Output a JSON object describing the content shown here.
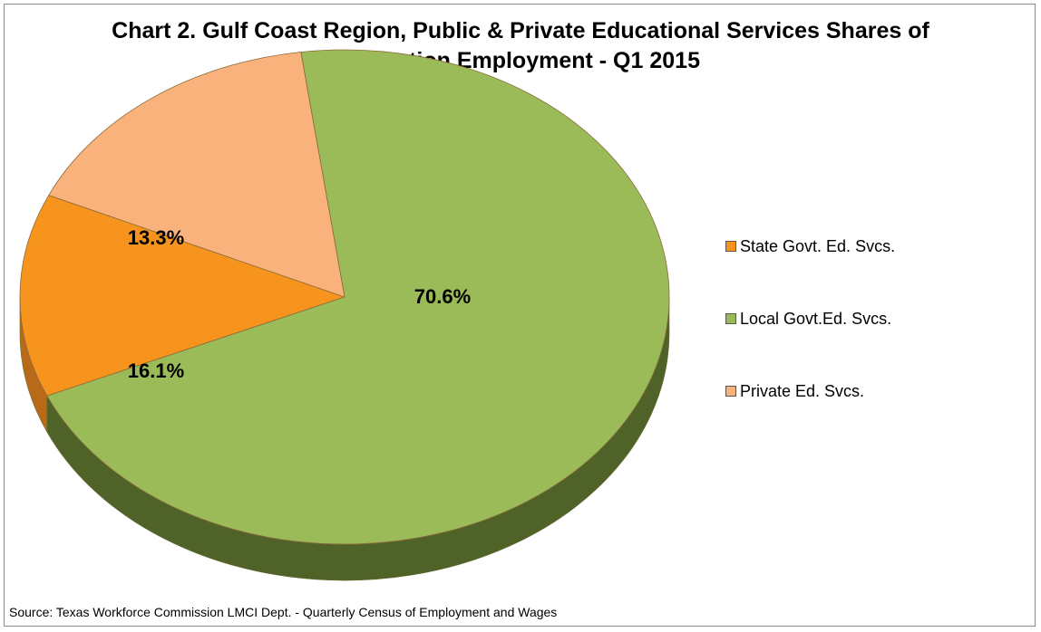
{
  "chart_data": {
    "type": "pie",
    "title": "Chart 2. Gulf Coast Region, Public & Private Educational Services Shares of Education Employment - Q1 2015",
    "title_lines": [
      "Chart 2. Gulf Coast Region, Public & Private Educational Services Shares of",
      "Education Employment - Q1 2015"
    ],
    "slices": [
      {
        "label": "State Govt. Ed. Svcs.",
        "value": 13.3,
        "display": "13.3%",
        "color": "#f7941d",
        "side_color": "#b86a18"
      },
      {
        "label": "Local Govt.Ed. Svcs.",
        "value": 70.6,
        "display": "70.6%",
        "color": "#9bbb59",
        "side_color": "#4f6228"
      },
      {
        "label": "Private Ed. Svcs.",
        "value": 16.1,
        "display": "16.1%",
        "color": "#fab27c",
        "side_color": "#a8683a"
      }
    ],
    "legend_position": "right",
    "style": "3d"
  },
  "footer": {
    "source": "Source: Texas Workforce Commission LMCI Dept. - Quarterly Census of Employment and Wages"
  }
}
